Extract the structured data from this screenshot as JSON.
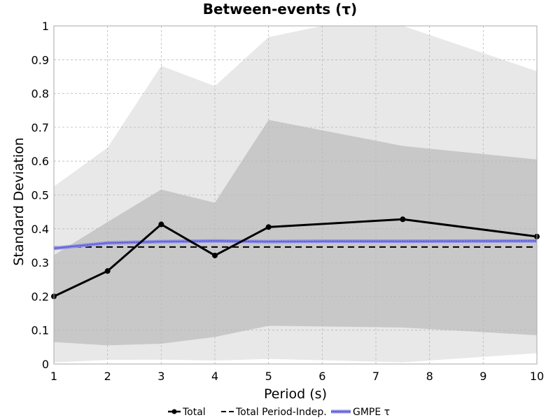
{
  "chart_data": {
    "type": "line",
    "title": "Between-events (τ)",
    "xlabel": "Period (s)",
    "ylabel": "Standard Deviation",
    "xlim": [
      1,
      10
    ],
    "ylim": [
      0,
      1
    ],
    "x_ticks": [
      1,
      2,
      3,
      4,
      5,
      6,
      7,
      8,
      9,
      10
    ],
    "x_tick_labels": [
      "1",
      "2",
      "3",
      "4",
      "5",
      "6",
      "7",
      "8",
      "9",
      "10"
    ],
    "y_ticks": [
      0,
      0.1,
      0.2,
      0.3,
      0.4,
      0.5,
      0.6,
      0.7,
      0.8,
      0.9,
      1
    ],
    "y_tick_labels": [
      "0",
      "0.1",
      "0.2",
      "0.3",
      "0.4",
      "0.5",
      "0.6",
      "0.7",
      "0.8",
      "0.9",
      "1"
    ],
    "grid": true,
    "legend_position": "bottom-center",
    "bands": [
      {
        "fill": "#e8e8e8",
        "upper": [
          [
            1,
            0.525
          ],
          [
            2,
            0.64
          ],
          [
            3,
            0.882
          ],
          [
            4,
            0.822
          ],
          [
            5,
            0.967
          ],
          [
            6,
            1.0
          ],
          [
            7.5,
            1.0
          ],
          [
            10,
            0.866
          ]
        ],
        "lower": [
          [
            1,
            0.005
          ],
          [
            2,
            0.012
          ],
          [
            3,
            0.013
          ],
          [
            4,
            0.01
          ],
          [
            5,
            0.015
          ],
          [
            7.5,
            0.005
          ],
          [
            10,
            0.032
          ]
        ]
      },
      {
        "fill": "#c8c8c8",
        "upper": [
          [
            1,
            0.322
          ],
          [
            2,
            0.42
          ],
          [
            3,
            0.516
          ],
          [
            4,
            0.477
          ],
          [
            5,
            0.722
          ],
          [
            7.5,
            0.645
          ],
          [
            10,
            0.605
          ]
        ],
        "lower": [
          [
            1,
            0.065
          ],
          [
            2,
            0.055
          ],
          [
            3,
            0.06
          ],
          [
            4,
            0.08
          ],
          [
            5,
            0.113
          ],
          [
            7.5,
            0.108
          ],
          [
            10,
            0.085
          ]
        ]
      }
    ],
    "series": [
      {
        "name": "Total",
        "style": "solid-markers",
        "color": "#000000",
        "points": [
          [
            1,
            0.2
          ],
          [
            2,
            0.275
          ],
          [
            3,
            0.413
          ],
          [
            4,
            0.321
          ],
          [
            5,
            0.405
          ],
          [
            7.5,
            0.428
          ],
          [
            10,
            0.377
          ]
        ]
      },
      {
        "name": "Total Period-Indep.",
        "style": "dashed",
        "color": "#000000",
        "points": [
          [
            1,
            0.346
          ],
          [
            10,
            0.346
          ]
        ]
      },
      {
        "name": "GMPE τ",
        "style": "blue-band",
        "color": "#3a3ac8",
        "points": [
          [
            1,
            0.342
          ],
          [
            1.5,
            0.35
          ],
          [
            2,
            0.358
          ],
          [
            3,
            0.362
          ],
          [
            4,
            0.364
          ],
          [
            5,
            0.362
          ],
          [
            6,
            0.363
          ],
          [
            7.5,
            0.363
          ],
          [
            10,
            0.364
          ]
        ]
      }
    ]
  }
}
